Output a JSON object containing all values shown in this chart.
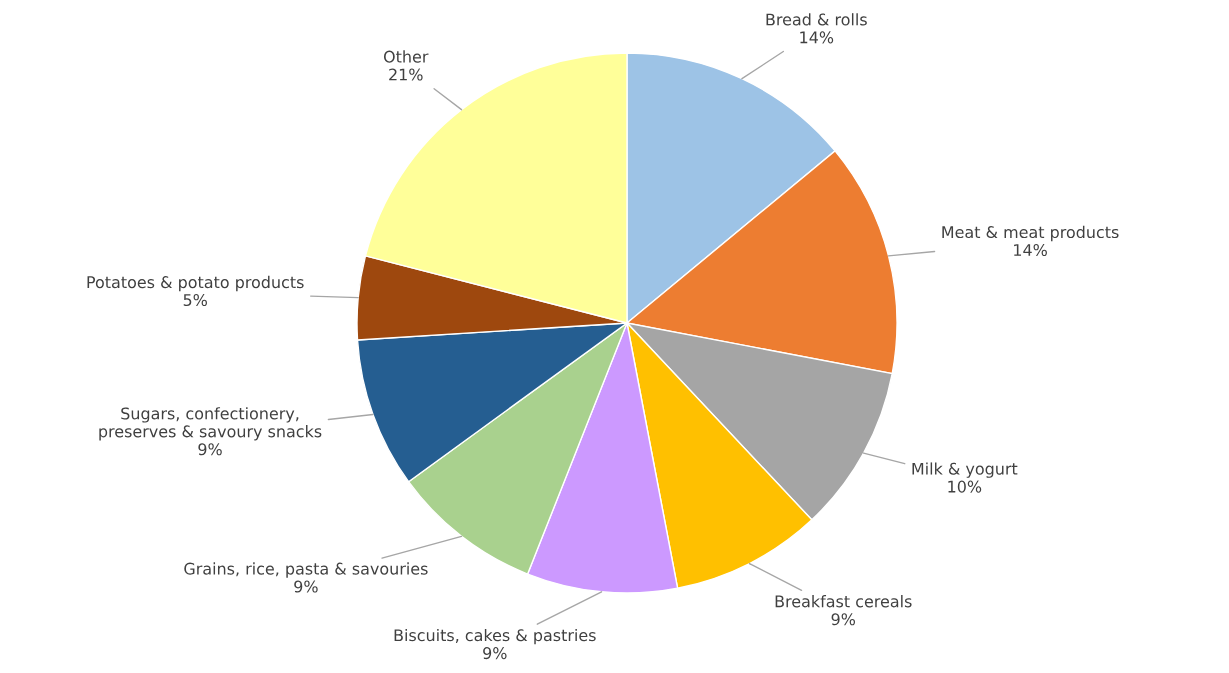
{
  "chart_data": {
    "type": "pie",
    "categories": [
      "Bread & rolls",
      "Meat & meat products",
      "Milk & yogurt",
      "Breakfast cereals",
      "Biscuits, cakes & pastries",
      "Grains, rice, pasta & savouries",
      "Sugars, confectionery,\npreserves & savoury snacks",
      "Potatoes & potato products",
      "Other"
    ],
    "values": [
      14,
      14,
      10,
      9,
      9,
      9,
      9,
      5,
      21
    ],
    "value_labels": [
      "14%",
      "14%",
      "10%",
      "9%",
      "9%",
      "9%",
      "9%",
      "5%",
      "21%"
    ],
    "colors": [
      "#9dc3e6",
      "#ed7d31",
      "#a5a5a5",
      "#ffc000",
      "#cc99ff",
      "#a9d18e",
      "#255e91",
      "#9e480e",
      "#ffff99"
    ]
  }
}
